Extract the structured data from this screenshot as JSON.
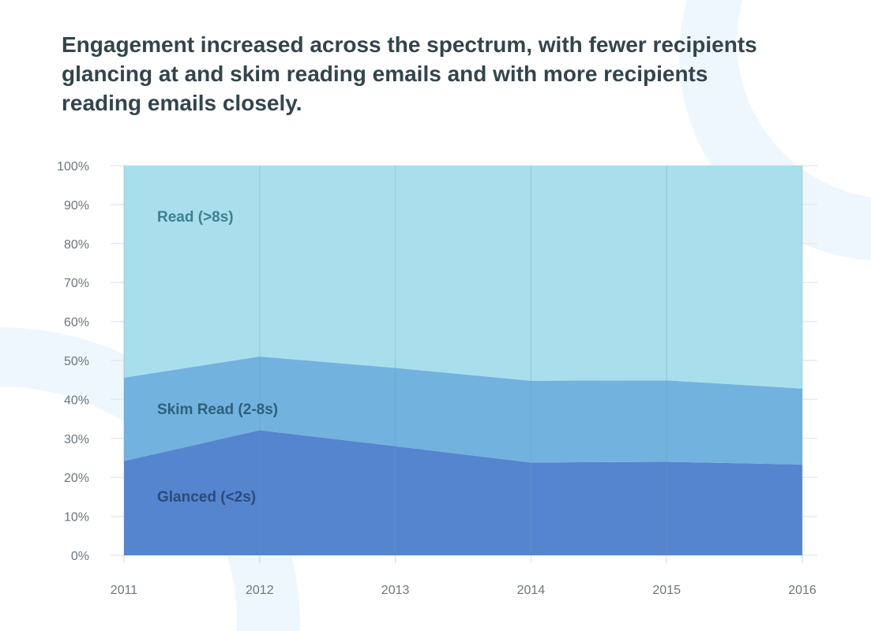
{
  "chart_data": {
    "type": "area",
    "stacked": true,
    "title": "Engagement increased across the spectrum, with fewer recipients glancing at and skim reading emails and with more recipients reading emails closely.",
    "xlabel": "",
    "ylabel": "",
    "categories": [
      "2011",
      "2012",
      "2013",
      "2014",
      "2015",
      "2016"
    ],
    "ylim": [
      0,
      100
    ],
    "yticks": [
      "0%",
      "10%",
      "20%",
      "30%",
      "40%",
      "50%",
      "60%",
      "70%",
      "80%",
      "90%",
      "100%"
    ],
    "grid": true,
    "legend": "inline labels",
    "series": [
      {
        "name": "Glanced (<2s)",
        "color": "#5585cf",
        "label_color": "#2d4a7a",
        "values": [
          24.2,
          32.1,
          28.0,
          23.8,
          24.0,
          23.3
        ]
      },
      {
        "name": "Skim Read (2-8s)",
        "color": "#72b2de",
        "label_color": "#2f5f7a",
        "values": [
          21.4,
          18.9,
          20.1,
          21.0,
          20.9,
          19.5
        ]
      },
      {
        "name": "Read (>8s)",
        "color": "#a9dfec",
        "label_color": "#3f7f8e",
        "values": [
          54.4,
          49.0,
          51.9,
          55.2,
          55.1,
          57.2
        ]
      }
    ]
  }
}
